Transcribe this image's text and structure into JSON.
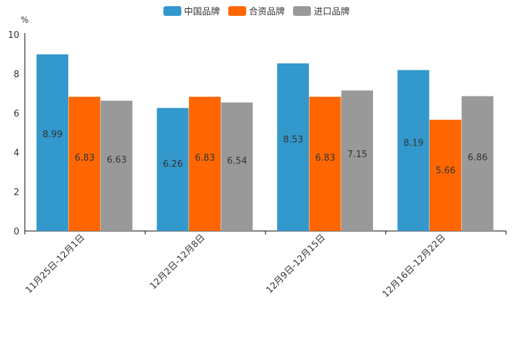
{
  "chart_data": {
    "type": "bar",
    "title": "",
    "xlabel": "",
    "ylabel": "%",
    "ylim": [
      0,
      10
    ],
    "yticks": [
      0,
      2,
      4,
      6,
      8,
      10
    ],
    "categories": [
      "11月25日-12月1日",
      "12月2日-12月8日",
      "12月9日-12月15日",
      "12月16日-12月22日"
    ],
    "series": [
      {
        "name": "中国品牌",
        "color": "#3398cc",
        "values": [
          8.99,
          6.26,
          8.53,
          8.19
        ]
      },
      {
        "name": "合资品牌",
        "color": "#ff6600",
        "values": [
          6.83,
          6.83,
          6.83,
          5.66
        ]
      },
      {
        "name": "进口品牌",
        "color": "#999999",
        "values": [
          6.63,
          6.54,
          7.15,
          6.86
        ]
      }
    ],
    "legend_position": "top-center"
  }
}
